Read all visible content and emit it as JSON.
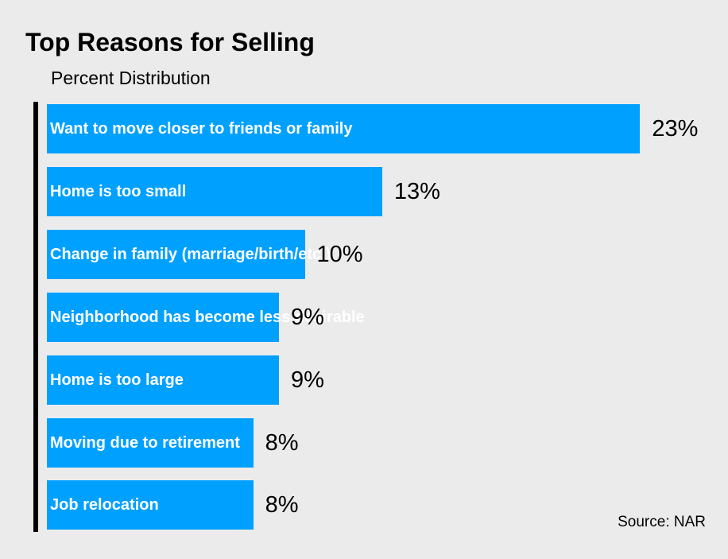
{
  "chart_data": {
    "type": "bar",
    "orientation": "horizontal",
    "title": "Top Reasons for Selling",
    "subtitle": "Percent Distribution",
    "categories": [
      "Want to move closer to friends or family",
      "Home is too small",
      "Change in family (marriage/birth/etc.)",
      "Neighborhood has become less desirable",
      "Home is too large",
      "Moving due to retirement",
      "Job relocation"
    ],
    "values": [
      23,
      13,
      10,
      9,
      9,
      8,
      8
    ],
    "value_labels": [
      "23%",
      "13%",
      "10%",
      "9%",
      "9%",
      "8%",
      "8%"
    ],
    "bar_color": "#00a0ff",
    "grid": false,
    "source": "Source: NAR"
  }
}
